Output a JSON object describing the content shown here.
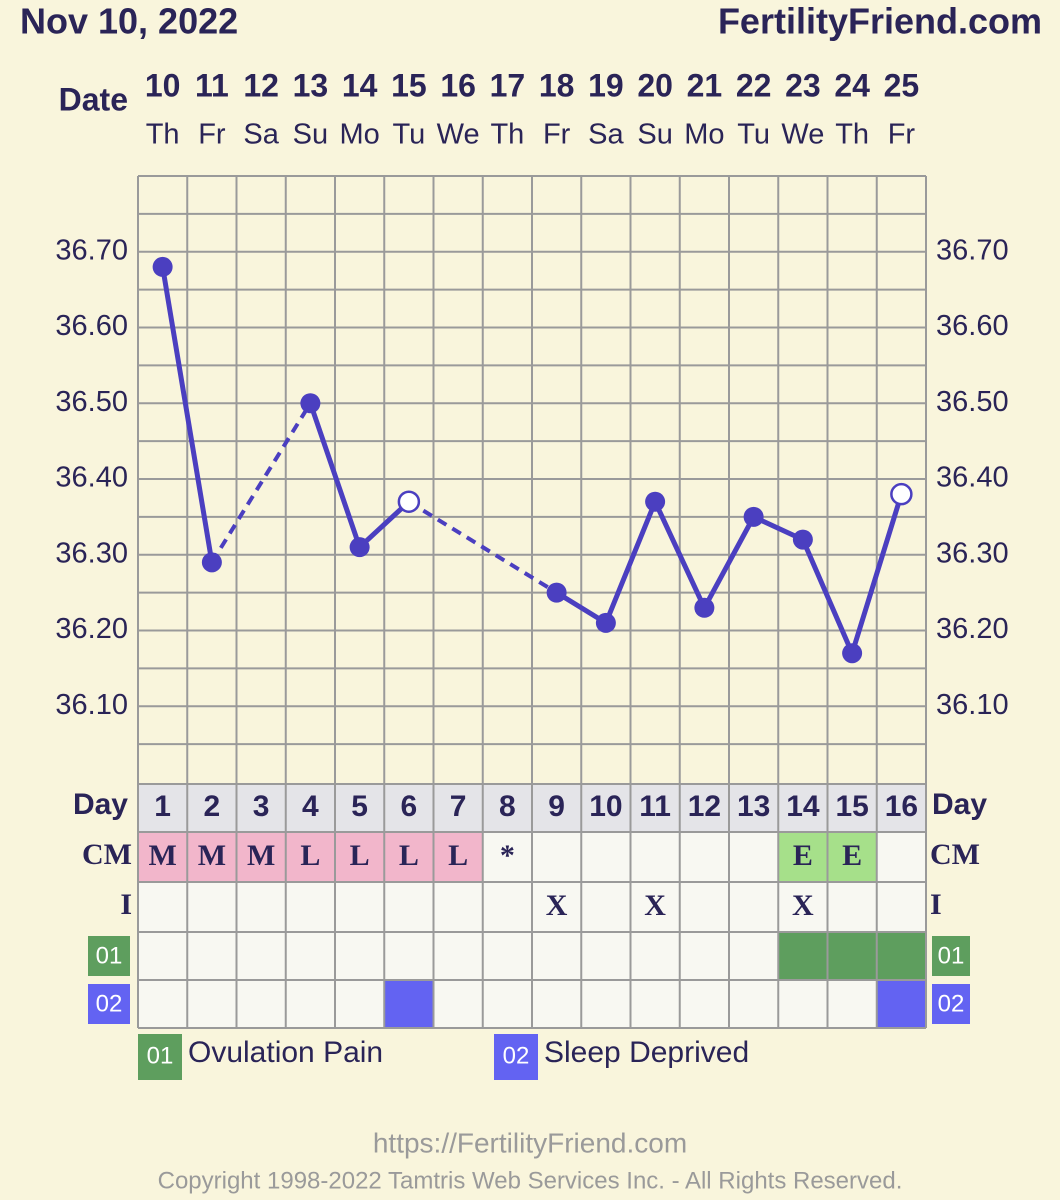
{
  "header": {
    "date": "Nov 10, 2022",
    "site": "FertilityFriend.com"
  },
  "chart_data": {
    "type": "line",
    "x_label": "Date",
    "categories": [
      10,
      11,
      12,
      13,
      14,
      15,
      16,
      17,
      18,
      19,
      20,
      21,
      22,
      23,
      24,
      25
    ],
    "weekdays": [
      "Th",
      "Fr",
      "Sa",
      "Su",
      "Mo",
      "Tu",
      "We",
      "Th",
      "Fr",
      "Sa",
      "Su",
      "Mo",
      "Tu",
      "We",
      "Th",
      "Fr"
    ],
    "values": [
      36.68,
      36.29,
      null,
      36.5,
      36.31,
      36.37,
      null,
      null,
      36.25,
      36.21,
      36.37,
      36.23,
      36.35,
      36.32,
      36.17,
      36.38
    ],
    "hollow": [
      false,
      false,
      false,
      false,
      false,
      true,
      false,
      false,
      false,
      false,
      false,
      false,
      false,
      false,
      false,
      true
    ],
    "color": "#4b3fc0",
    "ylim": [
      36.0,
      36.8
    ],
    "yticks": [
      {
        "value": 36.1,
        "label": "36.10"
      },
      {
        "value": 36.2,
        "label": "36.20"
      },
      {
        "value": 36.3,
        "label": "36.30"
      },
      {
        "value": 36.4,
        "label": "36.40"
      },
      {
        "value": 36.5,
        "label": "36.50"
      },
      {
        "value": 36.6,
        "label": "36.60"
      },
      {
        "value": 36.7,
        "label": "36.70"
      }
    ],
    "grid": true
  },
  "table": {
    "day_label": "Day",
    "days": [
      1,
      2,
      3,
      4,
      5,
      6,
      7,
      8,
      9,
      10,
      11,
      12,
      13,
      14,
      15,
      16
    ],
    "cm_label": "CM",
    "cm": [
      "M",
      "M",
      "M",
      "L",
      "L",
      "L",
      "L",
      "*",
      null,
      null,
      null,
      null,
      null,
      "E",
      "E",
      null
    ],
    "cm_colors": {
      "M": "#f2b6cb",
      "L": "#f2b6cb",
      "E": "#a6e08a"
    },
    "i_label": "I",
    "i": [
      null,
      null,
      null,
      null,
      null,
      null,
      null,
      null,
      "X",
      null,
      "X",
      null,
      null,
      "X",
      null,
      null
    ]
  },
  "symptoms": [
    {
      "code": "01",
      "name": "Ovulation Pain",
      "color": "#5e9e5e",
      "marked": [
        false,
        false,
        false,
        false,
        false,
        false,
        false,
        false,
        false,
        false,
        false,
        false,
        false,
        true,
        true,
        true
      ]
    },
    {
      "code": "02",
      "name": "Sleep Deprived",
      "color": "#6363f2",
      "marked": [
        false,
        false,
        false,
        false,
        false,
        true,
        false,
        false,
        false,
        false,
        false,
        false,
        false,
        false,
        false,
        true
      ]
    }
  ],
  "footer": {
    "url": "https://FertilityFriend.com",
    "copyright": "Copyright 1998-2022 Tamtris Web Services Inc. - All Rights Reserved."
  }
}
